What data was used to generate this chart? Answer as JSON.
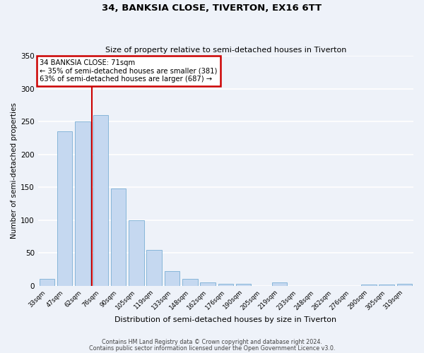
{
  "title": "34, BANKSIA CLOSE, TIVERTON, EX16 6TT",
  "subtitle": "Size of property relative to semi-detached houses in Tiverton",
  "xlabel": "Distribution of semi-detached houses by size in Tiverton",
  "ylabel": "Number of semi-detached properties",
  "bar_color": "#c5d8f0",
  "bar_edge_color": "#7aafd4",
  "background_color": "#eef2f9",
  "grid_color": "#ffffff",
  "bins": [
    "33sqm",
    "47sqm",
    "62sqm",
    "76sqm",
    "90sqm",
    "105sqm",
    "119sqm",
    "133sqm",
    "148sqm",
    "162sqm",
    "176sqm",
    "190sqm",
    "205sqm",
    "219sqm",
    "233sqm",
    "248sqm",
    "262sqm",
    "276sqm",
    "290sqm",
    "305sqm",
    "319sqm"
  ],
  "values": [
    10,
    235,
    250,
    260,
    148,
    100,
    54,
    22,
    10,
    5,
    3,
    3,
    0,
    5,
    0,
    0,
    0,
    0,
    2,
    2,
    3
  ],
  "ylim": [
    0,
    350
  ],
  "yticks": [
    0,
    50,
    100,
    150,
    200,
    250,
    300,
    350
  ],
  "property_line_x": 2.5,
  "annotation_title": "34 BANKSIA CLOSE: 71sqm",
  "annotation_line1": "← 35% of semi-detached houses are smaller (381)",
  "annotation_line2": "63% of semi-detached houses are larger (687) →",
  "annotation_box_color": "#ffffff",
  "annotation_box_edge": "#cc0000",
  "vline_color": "#cc0000",
  "footer1": "Contains HM Land Registry data © Crown copyright and database right 2024.",
  "footer2": "Contains public sector information licensed under the Open Government Licence v3.0."
}
